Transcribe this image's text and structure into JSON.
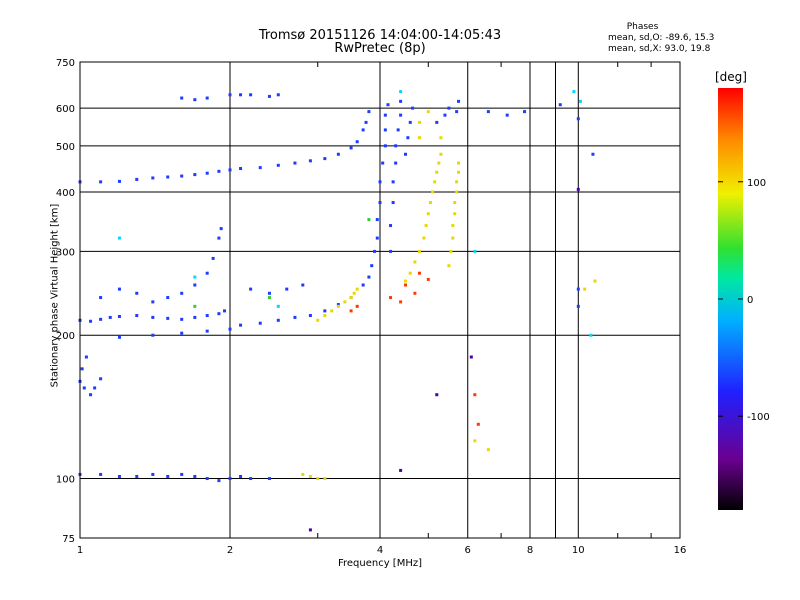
{
  "chart_data": {
    "type": "scatter",
    "title": "Tromsø 20151126 14:04:00-14:05:43",
    "subtitle": "RwPretec (8p)",
    "xlabel": "Frequency [MHz]",
    "ylabel": "Stationary phase Virtual Height [km]",
    "x_scale": "log",
    "y_scale": "log",
    "xlim": [
      1,
      16
    ],
    "ylim": [
      75,
      750
    ],
    "x_ticks": [
      1,
      2,
      4,
      6,
      8,
      10,
      16
    ],
    "y_ticks": [
      75,
      100,
      200,
      300,
      400,
      500,
      600,
      750
    ],
    "grid": true,
    "colorbar": {
      "label": "[deg]",
      "range": [
        -180,
        180
      ],
      "ticks": [
        100,
        0,
        -100
      ],
      "colormap": "rainbow (black-purple-blue-cyan-green-yellow-red)"
    },
    "legend": {
      "title": "Phases",
      "lines": [
        "mean, sd,O: -89.6, 15.3",
        "mean, sd,X:  93.0, 19.8"
      ]
    },
    "series": [
      {
        "name": "O",
        "color": "#1e3cff",
        "phase": -90,
        "points": [
          [
            1.0,
            215
          ],
          [
            1.05,
            214
          ],
          [
            1.1,
            216
          ],
          [
            1.15,
            218
          ],
          [
            1.2,
            219
          ],
          [
            1.3,
            220
          ],
          [
            1.4,
            218
          ],
          [
            1.5,
            217
          ],
          [
            1.6,
            216
          ],
          [
            1.7,
            218
          ],
          [
            1.8,
            220
          ],
          [
            1.9,
            222
          ],
          [
            1.95,
            225
          ],
          [
            1.1,
            240
          ],
          [
            1.2,
            250
          ],
          [
            1.3,
            245
          ],
          [
            1.4,
            235
          ],
          [
            1.5,
            240
          ],
          [
            1.6,
            245
          ],
          [
            1.7,
            255
          ],
          [
            1.8,
            270
          ],
          [
            1.85,
            290
          ],
          [
            1.9,
            320
          ],
          [
            1.92,
            335
          ],
          [
            1.2,
            198
          ],
          [
            1.4,
            200
          ],
          [
            1.6,
            202
          ],
          [
            1.8,
            204
          ],
          [
            2.0,
            206
          ],
          [
            1.0,
            160
          ],
          [
            1.02,
            155
          ],
          [
            1.05,
            150
          ],
          [
            1.07,
            155
          ],
          [
            1.1,
            162
          ],
          [
            1.01,
            170
          ],
          [
            1.03,
            180
          ],
          [
            1.0,
            102
          ],
          [
            1.1,
            102
          ],
          [
            1.2,
            101
          ],
          [
            1.3,
            101
          ],
          [
            1.4,
            102
          ],
          [
            1.5,
            101
          ],
          [
            1.6,
            102
          ],
          [
            1.7,
            101
          ],
          [
            1.8,
            100
          ],
          [
            1.9,
            99
          ],
          [
            2.0,
            100
          ],
          [
            2.1,
            101
          ],
          [
            2.2,
            100
          ],
          [
            2.4,
            100
          ],
          [
            1.0,
            420
          ],
          [
            1.1,
            420
          ],
          [
            1.2,
            421
          ],
          [
            1.3,
            425
          ],
          [
            1.4,
            428
          ],
          [
            1.5,
            430
          ],
          [
            1.6,
            432
          ],
          [
            1.7,
            435
          ],
          [
            1.8,
            438
          ],
          [
            1.9,
            442
          ],
          [
            2.0,
            445
          ],
          [
            2.1,
            448
          ],
          [
            2.3,
            450
          ],
          [
            2.5,
            455
          ],
          [
            2.7,
            460
          ],
          [
            2.9,
            465
          ],
          [
            3.1,
            470
          ],
          [
            3.3,
            480
          ],
          [
            3.5,
            495
          ],
          [
            3.6,
            510
          ],
          [
            3.7,
            540
          ],
          [
            3.75,
            560
          ],
          [
            3.8,
            590
          ],
          [
            1.6,
            630
          ],
          [
            1.7,
            625
          ],
          [
            1.8,
            630
          ],
          [
            2.0,
            640
          ],
          [
            2.1,
            640
          ],
          [
            2.2,
            640
          ],
          [
            2.4,
            635
          ],
          [
            2.5,
            640
          ],
          [
            2.1,
            210
          ],
          [
            2.3,
            212
          ],
          [
            2.5,
            215
          ],
          [
            2.7,
            218
          ],
          [
            2.9,
            220
          ],
          [
            3.1,
            225
          ],
          [
            3.3,
            232
          ],
          [
            3.5,
            240
          ],
          [
            3.7,
            255
          ],
          [
            3.8,
            265
          ],
          [
            3.85,
            280
          ],
          [
            3.9,
            300
          ],
          [
            2.2,
            250
          ],
          [
            2.4,
            245
          ],
          [
            2.6,
            250
          ],
          [
            2.8,
            255
          ],
          [
            3.95,
            320
          ],
          [
            3.95,
            350
          ],
          [
            4.0,
            380
          ],
          [
            4.0,
            420
          ],
          [
            4.05,
            460
          ],
          [
            4.1,
            500
          ],
          [
            4.1,
            540
          ],
          [
            4.1,
            580
          ],
          [
            4.15,
            610
          ],
          [
            4.2,
            300
          ],
          [
            4.2,
            340
          ],
          [
            4.25,
            380
          ],
          [
            4.25,
            420
          ],
          [
            4.3,
            460
          ],
          [
            4.3,
            500
          ],
          [
            4.35,
            540
          ],
          [
            4.4,
            580
          ],
          [
            4.4,
            620
          ],
          [
            4.5,
            480
          ],
          [
            4.55,
            520
          ],
          [
            4.6,
            560
          ],
          [
            4.65,
            600
          ],
          [
            5.2,
            560
          ],
          [
            5.4,
            580
          ],
          [
            5.5,
            600
          ],
          [
            5.7,
            590
          ],
          [
            5.75,
            620
          ],
          [
            6.6,
            590
          ],
          [
            7.2,
            580
          ],
          [
            7.8,
            590
          ],
          [
            9.2,
            610
          ],
          [
            10.0,
            570
          ],
          [
            10.7,
            480
          ],
          [
            10.0,
            230
          ],
          [
            10.0,
            250
          ]
        ]
      },
      {
        "name": "X",
        "color": "#e8d800",
        "phase": 90,
        "points": [
          [
            2.8,
            102
          ],
          [
            2.9,
            101
          ],
          [
            3.0,
            100
          ],
          [
            3.1,
            100
          ],
          [
            3.0,
            215
          ],
          [
            3.1,
            220
          ],
          [
            3.2,
            225
          ],
          [
            3.3,
            230
          ],
          [
            3.4,
            235
          ],
          [
            3.5,
            240
          ],
          [
            3.55,
            245
          ],
          [
            3.6,
            250
          ],
          [
            4.5,
            260
          ],
          [
            4.6,
            270
          ],
          [
            4.7,
            285
          ],
          [
            4.8,
            300
          ],
          [
            4.9,
            320
          ],
          [
            4.95,
            340
          ],
          [
            5.0,
            360
          ],
          [
            5.05,
            380
          ],
          [
            5.1,
            400
          ],
          [
            5.15,
            420
          ],
          [
            5.2,
            440
          ],
          [
            5.25,
            460
          ],
          [
            5.3,
            480
          ],
          [
            5.3,
            520
          ],
          [
            5.5,
            280
          ],
          [
            5.55,
            300
          ],
          [
            5.6,
            320
          ],
          [
            5.6,
            340
          ],
          [
            5.65,
            360
          ],
          [
            5.65,
            380
          ],
          [
            5.7,
            400
          ],
          [
            5.7,
            420
          ],
          [
            5.75,
            440
          ],
          [
            5.75,
            460
          ],
          [
            4.8,
            520
          ],
          [
            4.8,
            560
          ],
          [
            5.0,
            590
          ],
          [
            6.2,
            120
          ],
          [
            6.6,
            115
          ],
          [
            10.3,
            250
          ],
          [
            10.8,
            260
          ]
        ]
      },
      {
        "name": "X-red",
        "color": "#ff3a00",
        "phase": 150,
        "points": [
          [
            3.5,
            225
          ],
          [
            3.6,
            230
          ],
          [
            4.4,
            235
          ],
          [
            4.7,
            245
          ],
          [
            4.5,
            255
          ],
          [
            4.8,
            270
          ],
          [
            5.0,
            262
          ],
          [
            4.2,
            240
          ],
          [
            6.2,
            150
          ],
          [
            6.3,
            130
          ]
        ]
      },
      {
        "name": "cyan",
        "color": "#00d8ff",
        "phase": -30,
        "points": [
          [
            1.2,
            320
          ],
          [
            1.7,
            265
          ],
          [
            2.5,
            230
          ],
          [
            4.4,
            650
          ],
          [
            9.8,
            650
          ],
          [
            10.1,
            620
          ],
          [
            10.6,
            200
          ],
          [
            6.2,
            300
          ]
        ]
      },
      {
        "name": "dark",
        "color": "#4a00aa",
        "phase": -150,
        "points": [
          [
            2.9,
            78
          ],
          [
            4.4,
            104
          ],
          [
            5.2,
            150
          ],
          [
            6.1,
            180
          ],
          [
            10.0,
            405
          ]
        ]
      },
      {
        "name": "green",
        "color": "#30d030",
        "phase": 10,
        "points": [
          [
            1.7,
            230
          ],
          [
            2.4,
            240
          ],
          [
            3.8,
            350
          ]
        ]
      }
    ]
  }
}
